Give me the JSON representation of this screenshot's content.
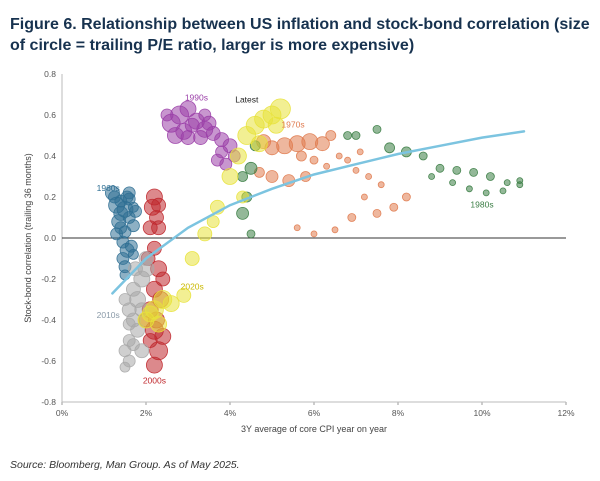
{
  "figure": {
    "title": "Figure 6. Relationship between US inflation and stock-bond correlation (size of circle = trailing P/E ratio, larger is more expensive)",
    "source": "Source: Bloomberg, Man Group. As of May 2025."
  },
  "chart_data": {
    "type": "scatter",
    "title": "Figure 6. Relationship between US inflation and stock-bond correlation (size of circle = trailing P/E ratio, larger is more expensive)",
    "xlabel": "3Y average of core CPI year on year",
    "ylabel": "Stock-bond correlation (trailing 36 months)",
    "xlim": [
      0,
      12
    ],
    "ylim": [
      -0.8,
      0.8
    ],
    "x_ticks": [
      0,
      2,
      4,
      6,
      8,
      10,
      12
    ],
    "x_tick_labels": [
      "0%",
      "2%",
      "4%",
      "6%",
      "8%",
      "10%",
      "12%"
    ],
    "y_ticks": [
      -0.8,
      -0.6,
      -0.4,
      -0.2,
      0.0,
      0.2,
      0.4,
      0.6,
      0.8
    ],
    "y_tick_labels": [
      "-0.8",
      "-0.6",
      "-0.4",
      "-0.2",
      "0.0",
      "0.2",
      "0.4",
      "0.6",
      "0.8"
    ],
    "grid": false,
    "legend": "direct labels on chart",
    "size_encoding": "trailing P/E ratio",
    "series": [
      {
        "name": "1960s",
        "color": "#2f6f93",
        "label_at": [
          1.1,
          0.23
        ],
        "points": [
          [
            1.2,
            0.22,
            7
          ],
          [
            1.3,
            0.16,
            8
          ],
          [
            1.4,
            0.12,
            7
          ],
          [
            1.5,
            0.14,
            8
          ],
          [
            1.35,
            0.08,
            7
          ],
          [
            1.5,
            0.03,
            6
          ],
          [
            1.45,
            -0.02,
            6
          ],
          [
            1.55,
            -0.06,
            7
          ],
          [
            1.45,
            -0.1,
            6
          ],
          [
            1.5,
            -0.14,
            6
          ],
          [
            1.6,
            0.1,
            6
          ],
          [
            1.7,
            0.06,
            6
          ],
          [
            1.65,
            -0.04,
            6
          ],
          [
            1.4,
            0.18,
            6
          ],
          [
            1.6,
            0.19,
            6
          ],
          [
            1.75,
            0.13,
            6
          ],
          [
            1.3,
            0.02,
            6
          ],
          [
            1.25,
            0.2,
            6
          ],
          [
            1.6,
            0.22,
            6
          ],
          [
            1.7,
            -0.08,
            5
          ],
          [
            1.5,
            -0.18,
            5
          ],
          [
            1.4,
            0.05,
            6
          ],
          [
            1.55,
            0.2,
            6
          ],
          [
            1.7,
            0.15,
            5
          ]
        ]
      },
      {
        "name": "1970s",
        "color": "#e07b4f",
        "label_at": [
          5.5,
          0.54
        ],
        "points": [
          [
            4.8,
            0.47,
            7
          ],
          [
            5.0,
            0.44,
            7
          ],
          [
            5.3,
            0.45,
            8
          ],
          [
            5.6,
            0.46,
            8
          ],
          [
            5.9,
            0.47,
            8
          ],
          [
            6.2,
            0.46,
            7
          ],
          [
            6.4,
            0.5,
            5
          ],
          [
            6.6,
            0.4,
            3
          ],
          [
            6.3,
            0.35,
            3
          ],
          [
            5.8,
            0.3,
            5
          ],
          [
            5.4,
            0.28,
            6
          ],
          [
            5.0,
            0.3,
            6
          ],
          [
            4.7,
            0.32,
            5
          ],
          [
            7.0,
            0.33,
            3
          ],
          [
            7.3,
            0.3,
            3
          ],
          [
            7.6,
            0.26,
            3
          ],
          [
            7.2,
            0.2,
            3
          ],
          [
            6.9,
            0.1,
            4
          ],
          [
            6.5,
            0.04,
            3
          ],
          [
            6.0,
            0.02,
            3
          ],
          [
            5.6,
            0.05,
            3
          ],
          [
            7.5,
            0.12,
            4
          ],
          [
            7.9,
            0.15,
            4
          ],
          [
            8.2,
            0.2,
            4
          ],
          [
            7.1,
            0.42,
            3
          ],
          [
            6.8,
            0.38,
            3
          ],
          [
            6.0,
            0.38,
            4
          ],
          [
            5.7,
            0.4,
            5
          ]
        ]
      },
      {
        "name": "1980s",
        "color": "#3a7d44",
        "label_at": [
          10.0,
          0.15
        ],
        "points": [
          [
            7.0,
            0.5,
            4
          ],
          [
            7.5,
            0.53,
            4
          ],
          [
            8.2,
            0.42,
            5
          ],
          [
            8.6,
            0.4,
            4
          ],
          [
            9.0,
            0.34,
            4
          ],
          [
            9.4,
            0.33,
            4
          ],
          [
            9.8,
            0.32,
            4
          ],
          [
            10.2,
            0.3,
            4
          ],
          [
            10.6,
            0.27,
            3
          ],
          [
            10.9,
            0.28,
            3
          ],
          [
            10.5,
            0.23,
            3
          ],
          [
            10.1,
            0.22,
            3
          ],
          [
            9.7,
            0.24,
            3
          ],
          [
            9.3,
            0.27,
            3
          ],
          [
            8.8,
            0.3,
            3
          ],
          [
            4.5,
            0.34,
            6
          ],
          [
            4.3,
            0.3,
            5
          ],
          [
            4.4,
            0.2,
            5
          ],
          [
            4.3,
            0.12,
            6
          ],
          [
            4.5,
            0.02,
            4
          ],
          [
            4.6,
            0.45,
            5
          ],
          [
            6.8,
            0.5,
            4
          ],
          [
            7.8,
            0.44,
            5
          ],
          [
            10.9,
            0.26,
            3
          ]
        ]
      },
      {
        "name": "1990s",
        "color": "#9b3fa8",
        "label_at": [
          3.2,
          0.67
        ],
        "points": [
          [
            2.6,
            0.56,
            9
          ],
          [
            2.8,
            0.6,
            9
          ],
          [
            3.0,
            0.63,
            8
          ],
          [
            3.2,
            0.57,
            8
          ],
          [
            3.4,
            0.53,
            8
          ],
          [
            3.6,
            0.51,
            7
          ],
          [
            3.8,
            0.48,
            7
          ],
          [
            4.0,
            0.45,
            7
          ],
          [
            2.7,
            0.5,
            8
          ],
          [
            2.9,
            0.52,
            8
          ],
          [
            3.1,
            0.55,
            7
          ],
          [
            3.3,
            0.49,
            7
          ],
          [
            3.7,
            0.38,
            6
          ],
          [
            3.9,
            0.36,
            6
          ],
          [
            4.1,
            0.4,
            6
          ],
          [
            3.5,
            0.56,
            7
          ],
          [
            2.5,
            0.6,
            6
          ],
          [
            3.0,
            0.49,
            7
          ],
          [
            3.4,
            0.6,
            6
          ],
          [
            3.8,
            0.42,
            6
          ]
        ]
      },
      {
        "name": "2000s",
        "color": "#c0282d",
        "label_at": [
          2.2,
          -0.71
        ],
        "points": [
          [
            2.2,
            0.2,
            8
          ],
          [
            2.3,
            0.16,
            7
          ],
          [
            2.25,
            0.1,
            7
          ],
          [
            2.1,
            0.05,
            7
          ],
          [
            2.2,
            -0.05,
            7
          ],
          [
            2.3,
            -0.15,
            8
          ],
          [
            2.2,
            -0.25,
            8
          ],
          [
            2.1,
            -0.35,
            8
          ],
          [
            2.2,
            -0.45,
            9
          ],
          [
            2.3,
            -0.55,
            9
          ],
          [
            2.2,
            -0.62,
            8
          ],
          [
            2.1,
            -0.5,
            7
          ],
          [
            2.0,
            -0.4,
            7
          ],
          [
            2.35,
            -0.3,
            8
          ],
          [
            2.4,
            -0.2,
            7
          ],
          [
            2.15,
            0.15,
            8
          ],
          [
            2.05,
            -0.1,
            7
          ],
          [
            2.3,
            0.05,
            7
          ],
          [
            2.25,
            -0.4,
            8
          ],
          [
            2.4,
            -0.48,
            8
          ]
        ]
      },
      {
        "name": "2010s",
        "color": "#a8a8a8",
        "label_at": [
          1.1,
          -0.39
        ],
        "points": [
          [
            1.5,
            -0.3,
            6
          ],
          [
            1.6,
            -0.35,
            7
          ],
          [
            1.7,
            -0.4,
            7
          ],
          [
            1.8,
            -0.45,
            7
          ],
          [
            1.6,
            -0.5,
            6
          ],
          [
            1.5,
            -0.55,
            6
          ],
          [
            1.6,
            -0.6,
            6
          ],
          [
            1.8,
            -0.3,
            8
          ],
          [
            1.9,
            -0.2,
            8
          ],
          [
            2.0,
            -0.15,
            8
          ],
          [
            1.7,
            -0.25,
            7
          ],
          [
            1.9,
            -0.55,
            7
          ],
          [
            1.5,
            -0.63,
            5
          ],
          [
            2.0,
            -0.1,
            7
          ],
          [
            1.75,
            -0.15,
            7
          ],
          [
            1.6,
            -0.42,
            6
          ],
          [
            1.9,
            -0.35,
            7
          ],
          [
            1.7,
            -0.52,
            6
          ]
        ]
      },
      {
        "name": "2020s",
        "color": "#e8e23a",
        "label_at": [
          3.1,
          -0.25
        ],
        "points": [
          [
            2.0,
            -0.4,
            8
          ],
          [
            2.2,
            -0.35,
            9
          ],
          [
            2.4,
            -0.3,
            9
          ],
          [
            2.6,
            -0.32,
            8
          ],
          [
            2.9,
            -0.28,
            7
          ],
          [
            3.1,
            -0.1,
            7
          ],
          [
            3.4,
            0.02,
            7
          ],
          [
            3.7,
            0.15,
            7
          ],
          [
            4.0,
            0.3,
            8
          ],
          [
            4.2,
            0.4,
            8
          ],
          [
            4.4,
            0.5,
            9
          ],
          [
            4.6,
            0.55,
            9
          ],
          [
            4.8,
            0.58,
            9
          ],
          [
            5.0,
            0.6,
            9
          ],
          [
            5.2,
            0.63,
            10
          ],
          [
            5.1,
            0.55,
            8
          ],
          [
            4.7,
            0.46,
            8
          ],
          [
            4.3,
            0.2,
            6
          ],
          [
            3.6,
            0.08,
            6
          ],
          [
            2.3,
            -0.42,
            8
          ],
          [
            2.1,
            -0.37,
            8
          ]
        ]
      }
    ],
    "trend_line": {
      "color": "#7cc4e0",
      "points": [
        [
          1.2,
          -0.27
        ],
        [
          2,
          -0.1
        ],
        [
          3,
          0.05
        ],
        [
          4,
          0.16
        ],
        [
          5,
          0.24
        ],
        [
          6,
          0.31
        ],
        [
          7,
          0.36
        ],
        [
          8,
          0.41
        ],
        [
          9,
          0.45
        ],
        [
          10,
          0.49
        ],
        [
          11,
          0.52
        ]
      ]
    },
    "annotations": [
      {
        "text": "Latest",
        "at": [
          4.4,
          0.66
        ]
      }
    ]
  }
}
